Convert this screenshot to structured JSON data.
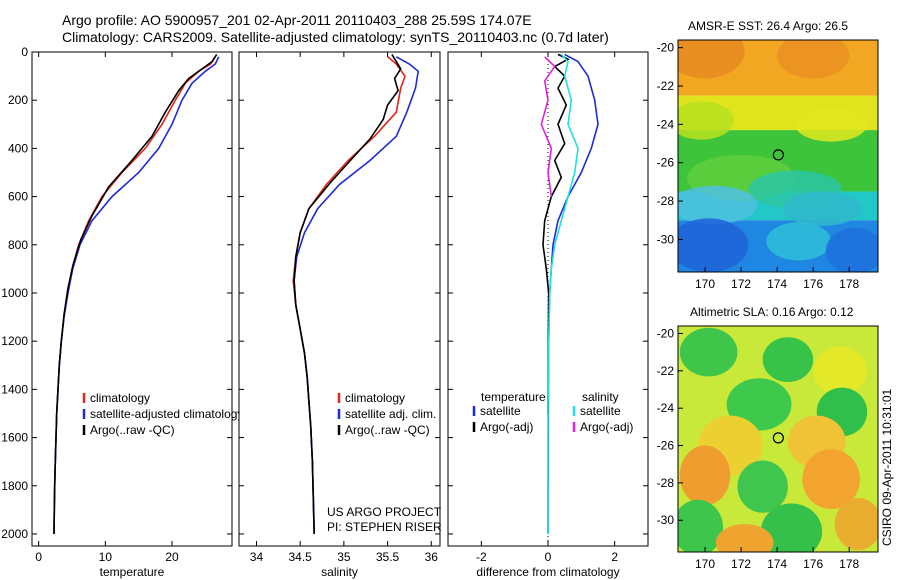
{
  "header": {
    "line1": "Argo profile: AO 5900957_201 02-Apr-2011 20110403_288 25.59S 174.07E",
    "line2": "Climatology: CARS2009. Satellite-adjusted climatology: synTS_20110403.nc (0.7d later)"
  },
  "stamp": "CSIRO 09-Apr-2011 10:31:01",
  "colors": {
    "red": "#e0261a",
    "blue": "#1f2ad6",
    "black": "#000000",
    "cyan": "#22e0e0",
    "magenta": "#e020e0"
  },
  "chart_data": [
    {
      "type": "line",
      "id": "temperature",
      "xlabel": "temperature",
      "xlim": [
        -1,
        29
      ],
      "ylim": [
        2050,
        0
      ],
      "xticks": [
        "0",
        "10",
        "20"
      ],
      "xtick_values": [
        0,
        10,
        20
      ],
      "yticks": [
        "0",
        "200",
        "400",
        "600",
        "800",
        "1000",
        "1200",
        "1400",
        "1600",
        "1800",
        "2000"
      ],
      "ytick_values": [
        0,
        200,
        400,
        600,
        800,
        1000,
        1200,
        1400,
        1600,
        1800,
        2000
      ],
      "legend": [
        "climatology",
        "satellite-adjusted climatology",
        "Argo(..raw -QC)"
      ],
      "legend_colors": [
        "red",
        "blue",
        "black"
      ],
      "series": [
        {
          "name": "climatology",
          "color": "red",
          "points": [
            [
              26.5,
              20
            ],
            [
              25.8,
              50
            ],
            [
              24,
              80
            ],
            [
              22,
              130
            ],
            [
              20.5,
              200
            ],
            [
              18.5,
              300
            ],
            [
              16,
              400
            ],
            [
              12.5,
              500
            ],
            [
              9.5,
              600
            ],
            [
              7.5,
              700
            ],
            [
              6,
              800
            ],
            [
              5,
              900
            ],
            [
              4.3,
              1000
            ],
            [
              3.8,
              1100
            ],
            [
              3.4,
              1200
            ],
            [
              3.1,
              1300
            ],
            [
              2.9,
              1400
            ],
            [
              2.7,
              1500
            ],
            [
              2.6,
              1600
            ],
            [
              2.5,
              1700
            ],
            [
              2.4,
              1800
            ],
            [
              2.35,
              1900
            ],
            [
              2.3,
              2000
            ]
          ]
        },
        {
          "name": "satellite-adjusted climatology",
          "color": "blue",
          "points": [
            [
              27,
              20
            ],
            [
              26.5,
              50
            ],
            [
              25,
              80
            ],
            [
              23,
              130
            ],
            [
              21.5,
              200
            ],
            [
              20,
              300
            ],
            [
              18,
              400
            ],
            [
              15,
              500
            ],
            [
              11,
              600
            ],
            [
              8,
              700
            ],
            [
              6.2,
              800
            ],
            [
              5.1,
              900
            ],
            [
              4.4,
              1000
            ],
            [
              3.8,
              1100
            ],
            [
              3.4,
              1200
            ],
            [
              3.1,
              1300
            ],
            [
              2.9,
              1400
            ],
            [
              2.7,
              1500
            ],
            [
              2.6,
              1600
            ],
            [
              2.5,
              1700
            ],
            [
              2.4,
              1800
            ],
            [
              2.35,
              1900
            ],
            [
              2.3,
              2000
            ]
          ]
        },
        {
          "name": "Argo",
          "color": "black",
          "points": [
            [
              26.7,
              10
            ],
            [
              26,
              40
            ],
            [
              24.5,
              70
            ],
            [
              22.5,
              110
            ],
            [
              21,
              160
            ],
            [
              19,
              250
            ],
            [
              17,
              350
            ],
            [
              14,
              450
            ],
            [
              10.5,
              560
            ],
            [
              8,
              680
            ],
            [
              6.3,
              780
            ],
            [
              5.2,
              880
            ],
            [
              4.4,
              980
            ],
            [
              3.8,
              1090
            ],
            [
              3.4,
              1200
            ],
            [
              3.1,
              1300
            ],
            [
              2.9,
              1400
            ],
            [
              2.7,
              1500
            ],
            [
              2.6,
              1600
            ],
            [
              2.5,
              1700
            ],
            [
              2.4,
              1800
            ],
            [
              2.35,
              1900
            ],
            [
              2.3,
              2000
            ]
          ]
        }
      ]
    },
    {
      "type": "line",
      "id": "salinity",
      "xlabel": "salinity",
      "xlim": [
        33.8,
        36.1
      ],
      "ylim": [
        2050,
        0
      ],
      "xticks": [
        "34",
        "34.5",
        "35",
        "35.5",
        "36"
      ],
      "xtick_values": [
        34,
        34.5,
        35,
        35.5,
        36
      ],
      "legend": [
        "climatology",
        "satellite adj. clim.",
        "Argo(..raw -QC)"
      ],
      "legend_colors": [
        "red",
        "blue",
        "black"
      ],
      "annotation": [
        "US ARGO PROJECT",
        "PI: STEPHEN RISER"
      ],
      "series": [
        {
          "name": "climatology",
          "color": "red",
          "points": [
            [
              35.5,
              20
            ],
            [
              35.6,
              50
            ],
            [
              35.7,
              100
            ],
            [
              35.65,
              150
            ],
            [
              35.6,
              250
            ],
            [
              35.35,
              350
            ],
            [
              35.05,
              450
            ],
            [
              34.8,
              550
            ],
            [
              34.6,
              650
            ],
            [
              34.5,
              750
            ],
            [
              34.45,
              850
            ],
            [
              34.42,
              950
            ],
            [
              34.45,
              1050
            ],
            [
              34.5,
              1150
            ],
            [
              34.55,
              1250
            ],
            [
              34.58,
              1350
            ],
            [
              34.6,
              1450
            ],
            [
              34.62,
              1550
            ],
            [
              34.64,
              1700
            ],
            [
              34.65,
              1850
            ],
            [
              34.66,
              2000
            ]
          ]
        },
        {
          "name": "satellite adj. clim.",
          "color": "blue",
          "points": [
            [
              35.6,
              20
            ],
            [
              35.75,
              50
            ],
            [
              35.85,
              80
            ],
            [
              35.82,
              150
            ],
            [
              35.72,
              250
            ],
            [
              35.6,
              350
            ],
            [
              35.3,
              450
            ],
            [
              34.95,
              550
            ],
            [
              34.7,
              650
            ],
            [
              34.55,
              750
            ],
            [
              34.46,
              850
            ],
            [
              34.43,
              950
            ],
            [
              34.45,
              1050
            ],
            [
              34.5,
              1150
            ],
            [
              34.55,
              1250
            ],
            [
              34.58,
              1350
            ],
            [
              34.6,
              1450
            ],
            [
              34.62,
              1550
            ],
            [
              34.64,
              1700
            ],
            [
              34.65,
              1850
            ],
            [
              34.66,
              2000
            ]
          ]
        },
        {
          "name": "Argo",
          "color": "black",
          "points": [
            [
              35.55,
              10
            ],
            [
              35.6,
              40
            ],
            [
              35.65,
              70
            ],
            [
              35.58,
              110
            ],
            [
              35.62,
              160
            ],
            [
              35.5,
              220
            ],
            [
              35.45,
              280
            ],
            [
              35.3,
              360
            ],
            [
              35.1,
              440
            ],
            [
              34.85,
              540
            ],
            [
              34.6,
              650
            ],
            [
              34.5,
              750
            ],
            [
              34.45,
              850
            ],
            [
              34.43,
              950
            ],
            [
              34.45,
              1050
            ],
            [
              34.5,
              1150
            ],
            [
              34.55,
              1250
            ],
            [
              34.58,
              1350
            ],
            [
              34.6,
              1450
            ],
            [
              34.62,
              1550
            ],
            [
              34.64,
              1700
            ],
            [
              34.65,
              1850
            ],
            [
              34.66,
              2000
            ]
          ]
        }
      ]
    },
    {
      "type": "line",
      "id": "difference",
      "xlabel": "difference from climatology",
      "xlim": [
        -3,
        3
      ],
      "ylim": [
        2050,
        0
      ],
      "xticks": [
        "-2",
        "0",
        "2"
      ],
      "xtick_values": [
        -2,
        0,
        2
      ],
      "legend_headers": [
        "temperature",
        "salinity"
      ],
      "legend": [
        "satellite",
        "Argo(-adj)",
        "satellite",
        "Argo(-adj)"
      ],
      "legend_colors": [
        "blue",
        "black",
        "cyan",
        "magenta"
      ],
      "series": [
        {
          "name": "temperature satellite",
          "color": "blue",
          "points": [
            [
              0.5,
              10
            ],
            [
              0.9,
              40
            ],
            [
              1.2,
              100
            ],
            [
              1.4,
              200
            ],
            [
              1.5,
              300
            ],
            [
              1.3,
              400
            ],
            [
              1.0,
              500
            ],
            [
              0.6,
              600
            ],
            [
              0.3,
              700
            ],
            [
              0.15,
              800
            ],
            [
              0.1,
              900
            ],
            [
              0.05,
              1000
            ],
            [
              0.02,
              1200
            ],
            [
              0.01,
              1500
            ],
            [
              0,
              2000
            ]
          ]
        },
        {
          "name": "temperature Argo",
          "color": "black",
          "points": [
            [
              0.3,
              10
            ],
            [
              0.6,
              30
            ],
            [
              0.2,
              60
            ],
            [
              0.5,
              100
            ],
            [
              0.3,
              150
            ],
            [
              0.55,
              220
            ],
            [
              0.3,
              300
            ],
            [
              0.5,
              380
            ],
            [
              0.2,
              450
            ],
            [
              0.4,
              520
            ],
            [
              0.1,
              600
            ],
            [
              -0.1,
              700
            ],
            [
              -0.15,
              800
            ],
            [
              -0.05,
              900
            ],
            [
              0.02,
              1000
            ],
            [
              0.01,
              1200
            ],
            [
              0,
              1500
            ]
          ]
        },
        {
          "name": "salinity satellite",
          "color": "cyan",
          "points": [
            [
              0.4,
              10
            ],
            [
              0.6,
              40
            ],
            [
              0.5,
              100
            ],
            [
              0.7,
              200
            ],
            [
              0.6,
              300
            ],
            [
              0.9,
              400
            ],
            [
              0.8,
              500
            ],
            [
              0.6,
              600
            ],
            [
              0.4,
              700
            ],
            [
              0.2,
              800
            ],
            [
              0.1,
              900
            ],
            [
              0.05,
              1000
            ],
            [
              0.02,
              1200
            ],
            [
              0,
              1500
            ],
            [
              0,
              2000
            ]
          ]
        },
        {
          "name": "salinity Argo",
          "color": "magenta",
          "points": [
            [
              -0.1,
              20
            ],
            [
              0.2,
              60
            ],
            [
              -0.1,
              120
            ],
            [
              0,
              200
            ],
            [
              -0.2,
              300
            ],
            [
              0.1,
              400
            ],
            [
              0,
              500
            ],
            [
              0.1,
              600
            ]
          ]
        }
      ]
    },
    {
      "type": "heatmap",
      "id": "sst",
      "title": "AMSR-E SST: 26.4 Argo: 26.5",
      "xlim": [
        168.5,
        179.6
      ],
      "ylim": [
        -31.7,
        -19.6
      ],
      "xticks": [
        "170",
        "172",
        "174",
        "176",
        "178"
      ],
      "xtick_values": [
        170,
        172,
        174,
        176,
        178
      ],
      "yticks": [
        "-20",
        "-22",
        "-24",
        "-26",
        "-28",
        "-30"
      ],
      "ytick_values": [
        -20,
        -22,
        -24,
        -26,
        -28,
        -30
      ],
      "marker": {
        "lon": 174.07,
        "lat": -25.59
      },
      "bands": [
        {
          "from_lat": -19.6,
          "to_lat": -22.5,
          "color": "#f2a722"
        },
        {
          "from_lat": -22.5,
          "to_lat": -24.3,
          "color": "#dfe41d"
        },
        {
          "from_lat": -24.3,
          "to_lat": -27.5,
          "color": "#3dc43a"
        },
        {
          "from_lat": -27.5,
          "to_lat": -29.0,
          "color": "#22c8c8"
        },
        {
          "from_lat": -29.0,
          "to_lat": -31.7,
          "color": "#1f86e2"
        }
      ]
    },
    {
      "type": "heatmap",
      "id": "sla",
      "title": "Altimetric SLA: 0.16 Argo: 0.12",
      "xlim": [
        168.5,
        179.6
      ],
      "ylim": [
        -31.7,
        -19.6
      ],
      "xticks": [
        "170",
        "172",
        "174",
        "176",
        "178"
      ],
      "xtick_values": [
        170,
        172,
        174,
        176,
        178
      ],
      "yticks": [
        "-20",
        "-22",
        "-24",
        "-26",
        "-28",
        "-30"
      ],
      "ytick_values": [
        -20,
        -22,
        -24,
        -26,
        -28,
        -30
      ],
      "marker": {
        "lon": 174.07,
        "lat": -25.59
      },
      "background": "#c8e83a"
    }
  ]
}
